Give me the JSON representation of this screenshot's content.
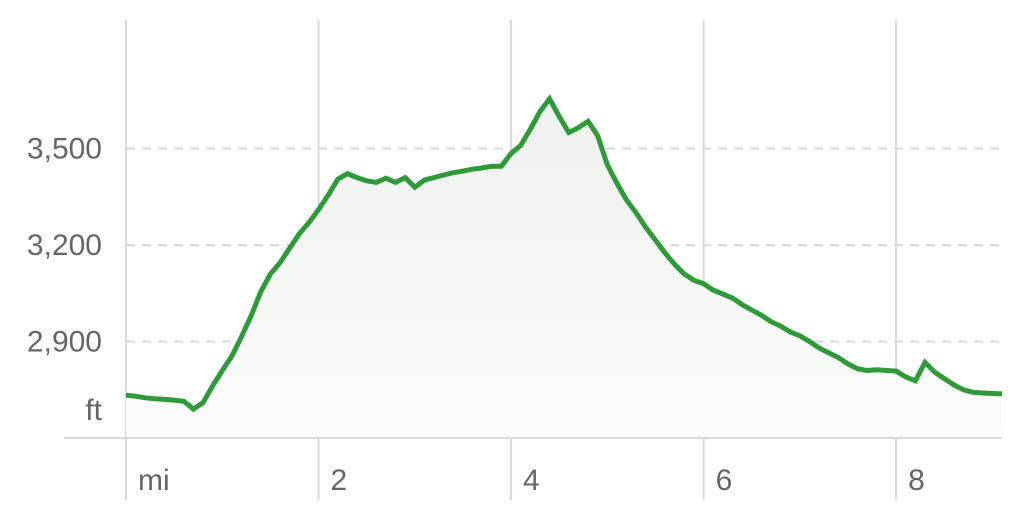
{
  "chart_data": {
    "type": "area",
    "title": "",
    "x_unit_label": "mi",
    "y_unit_label": "ft",
    "xlim": [
      0,
      9.1
    ],
    "ylim": [
      2600,
      3900
    ],
    "x_ticks": [
      2,
      4,
      6,
      8
    ],
    "x_tick_labels": [
      "2",
      "4",
      "6",
      "8"
    ],
    "y_ticks": [
      2900,
      3200,
      3500
    ],
    "y_tick_labels": [
      "2,900",
      "3,200",
      "3,500"
    ],
    "grid": {
      "vertical": true,
      "horizontal_dashed": true
    },
    "legend": "none",
    "colors": {
      "line": "#2e9a3a",
      "fill_top": "#eef1ee",
      "fill_bottom": "#fbfcfb",
      "grid": "#d9d9d9",
      "text": "#666666"
    },
    "series": [
      {
        "x": [
          0,
          0.1,
          0.2,
          0.3,
          0.4,
          0.5,
          0.6,
          0.7,
          0.8,
          0.9,
          1.0,
          1.1,
          1.2,
          1.3,
          1.4,
          1.5,
          1.6,
          1.7,
          1.8,
          1.9,
          2.0,
          2.1,
          2.2,
          2.3,
          2.4,
          2.5,
          2.6,
          2.7,
          2.8,
          2.9,
          3.0,
          3.1,
          3.2,
          3.3,
          3.4,
          3.5,
          3.6,
          3.7,
          3.8,
          3.9,
          4.0,
          4.1,
          4.2,
          4.3,
          4.4,
          4.5,
          4.6,
          4.7,
          4.8,
          4.9,
          5.0,
          5.1,
          5.2,
          5.3,
          5.4,
          5.5,
          5.6,
          5.7,
          5.8,
          5.9,
          6.0,
          6.1,
          6.2,
          6.3,
          6.4,
          6.5,
          6.6,
          6.7,
          6.8,
          6.9,
          7.0,
          7.1,
          7.2,
          7.3,
          7.4,
          7.5,
          7.6,
          7.7,
          7.8,
          7.9,
          8.0,
          8.1,
          8.2,
          8.3,
          8.4,
          8.5,
          8.6,
          8.7,
          8.8,
          8.9,
          9.1
        ],
        "y": [
          2733,
          2730,
          2725,
          2722,
          2720,
          2718,
          2714,
          2690,
          2710,
          2762,
          2810,
          2855,
          2915,
          2980,
          3055,
          3110,
          3145,
          3190,
          3235,
          3270,
          3310,
          3355,
          3405,
          3422,
          3410,
          3400,
          3395,
          3408,
          3395,
          3410,
          3380,
          3402,
          3410,
          3418,
          3425,
          3430,
          3436,
          3440,
          3445,
          3445,
          3485,
          3510,
          3560,
          3615,
          3655,
          3600,
          3550,
          3565,
          3585,
          3540,
          3450,
          3392,
          3340,
          3300,
          3255,
          3215,
          3175,
          3140,
          3110,
          3090,
          3080,
          3060,
          3048,
          3035,
          3015,
          2998,
          2982,
          2962,
          2948,
          2930,
          2918,
          2900,
          2880,
          2865,
          2850,
          2830,
          2815,
          2810,
          2812,
          2810,
          2808,
          2790,
          2778,
          2835,
          2805,
          2785,
          2765,
          2750,
          2742,
          2740,
          2737
        ]
      }
    ]
  }
}
